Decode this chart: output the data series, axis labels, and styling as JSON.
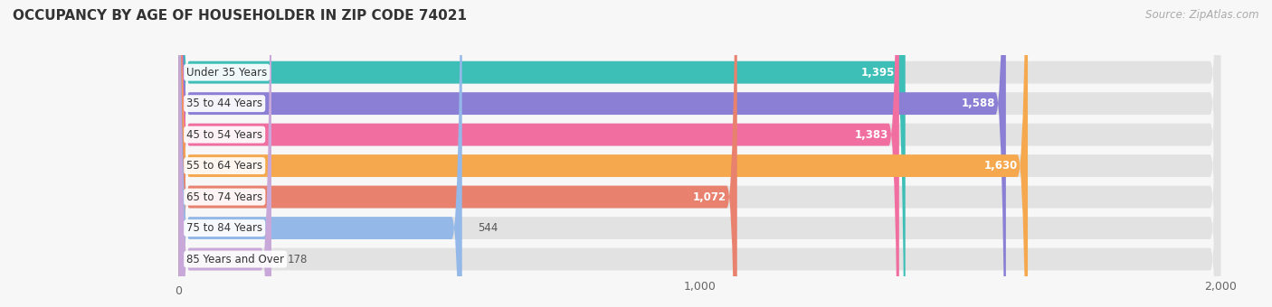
{
  "title": "OCCUPANCY BY AGE OF HOUSEHOLDER IN ZIP CODE 74021",
  "source": "Source: ZipAtlas.com",
  "categories": [
    "Under 35 Years",
    "35 to 44 Years",
    "45 to 54 Years",
    "55 to 64 Years",
    "65 to 74 Years",
    "75 to 84 Years",
    "85 Years and Over"
  ],
  "values": [
    1395,
    1588,
    1383,
    1630,
    1072,
    544,
    178
  ],
  "bar_colors": [
    "#3dbfb8",
    "#8a7fd4",
    "#f06fa0",
    "#f5a84e",
    "#e8826e",
    "#94b8e8",
    "#c8a8d8"
  ],
  "bar_bg_color": "#e8e8e8",
  "background_color": "#f7f7f7",
  "xlim": [
    0,
    2000
  ],
  "xticks": [
    0,
    1000,
    2000
  ],
  "title_fontsize": 11,
  "label_fontsize": 8.5,
  "value_fontsize": 8.5,
  "source_fontsize": 8.5
}
